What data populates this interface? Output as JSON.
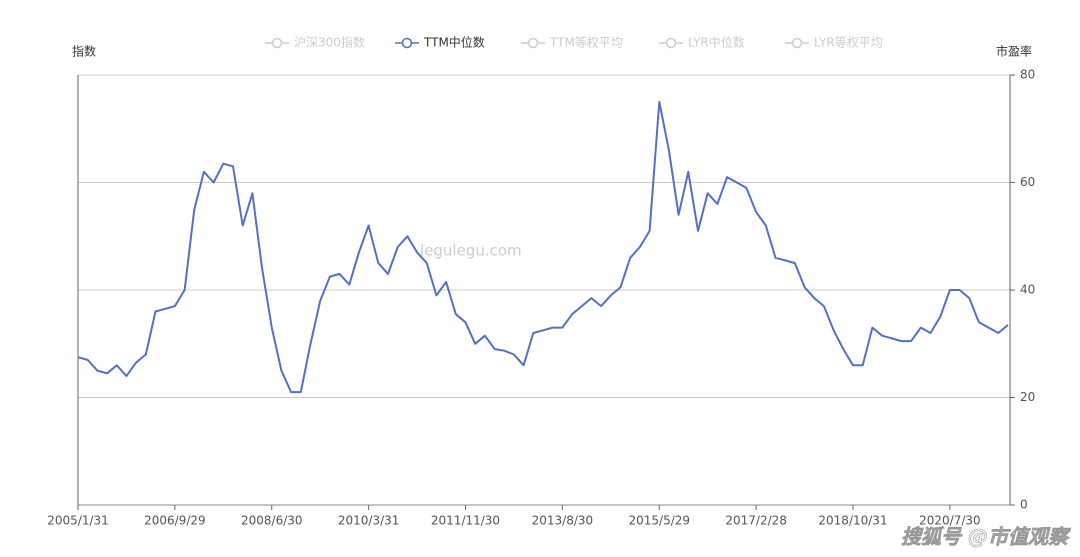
{
  "chart_data": {
    "type": "line",
    "ylabel": "指数",
    "y2label": "市盈率",
    "watermark": "legulegu.com",
    "source_mark": "搜狐号 @市值观察",
    "categories": [
      "2005/1/31",
      null,
      null,
      null,
      null,
      null,
      null,
      null,
      null,
      null,
      "2006/9/29",
      null,
      null,
      null,
      null,
      null,
      null,
      null,
      null,
      null,
      "2008/6/30",
      null,
      null,
      null,
      null,
      null,
      null,
      null,
      null,
      null,
      "2010/3/31",
      null,
      null,
      null,
      null,
      null,
      null,
      null,
      null,
      null,
      "2011/11/30",
      null,
      null,
      null,
      null,
      null,
      null,
      null,
      null,
      null,
      "2013/8/30",
      null,
      null,
      null,
      null,
      null,
      null,
      null,
      null,
      null,
      "2015/5/29",
      null,
      null,
      null,
      null,
      null,
      null,
      null,
      null,
      null,
      "2017/2/28",
      null,
      null,
      null,
      null,
      null,
      null,
      null,
      null,
      null,
      "2018/10/31",
      null,
      null,
      null,
      null,
      null,
      null,
      null,
      null,
      null,
      "2020/7/30",
      null,
      null,
      null,
      null,
      null,
      null
    ],
    "series": [
      {
        "name": "沪深300指数",
        "color": "#cccccc",
        "visible": false
      },
      {
        "name": "TTM中位数",
        "color": "#5470c6",
        "visible": true,
        "axis": "y2",
        "values": [
          27.5,
          27,
          25,
          24.5,
          26,
          24,
          26.5,
          28,
          36,
          36.5,
          37,
          40,
          55,
          62,
          60,
          63.5,
          63,
          52,
          58,
          44,
          33,
          25,
          21,
          21,
          30,
          38,
          42.5,
          43,
          41,
          47,
          52,
          45,
          43,
          48,
          50,
          47,
          45,
          39,
          41.5,
          35.5,
          34,
          30,
          31.5,
          29,
          28.7,
          28,
          26,
          32,
          32.5,
          33,
          33,
          35.5,
          37,
          38.5,
          37,
          39,
          40.5,
          46,
          48,
          51,
          75,
          66,
          54,
          62,
          51,
          58,
          56,
          61,
          60,
          59,
          54.5,
          52,
          46,
          45.5,
          45,
          40.5,
          38.5,
          37,
          32.5,
          29,
          26,
          26,
          33,
          31.5,
          31,
          30.5,
          30.5,
          33,
          32,
          35,
          40,
          40,
          38.5,
          34,
          33,
          32,
          33.5
        ]
      },
      {
        "name": "TTM等权平均",
        "color": "#cccccc",
        "visible": false
      },
      {
        "name": "LYR中位数",
        "color": "#cccccc",
        "visible": false
      },
      {
        "name": "LYR等权平均",
        "color": "#cccccc",
        "visible": false
      }
    ],
    "y2lim": [
      0,
      80
    ],
    "y2ticks": [
      0,
      20,
      40,
      60,
      80
    ],
    "grid": true
  }
}
